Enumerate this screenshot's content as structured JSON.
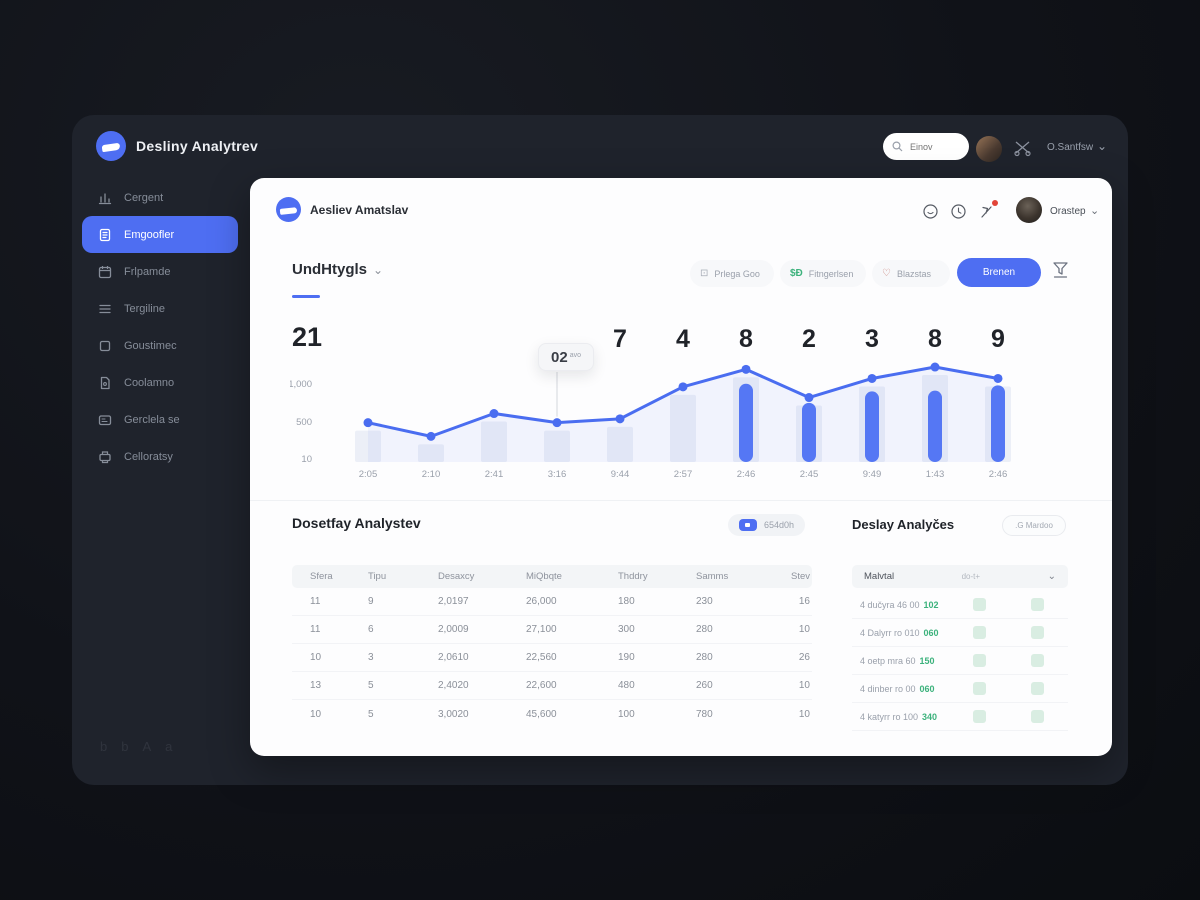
{
  "colors": {
    "accent": "#4e6ef2",
    "chart_line": "#4a6df0",
    "chart_bar": "#5577f4",
    "green": "#3cb27c",
    "frame_bg": "#1f232c",
    "card_bg": "#fdfdfe"
  },
  "topbar": {
    "brand": "Desliny Analytrev",
    "search_placeholder": "Einov",
    "user": "O.Santfsw"
  },
  "sidebar": {
    "active_index": 1,
    "items": [
      {
        "label": "Cergent",
        "icon": "chart-icon"
      },
      {
        "label": "Emgoofler",
        "icon": "docs-icon"
      },
      {
        "label": "Frlpamde",
        "icon": "calendar-icon"
      },
      {
        "label": "Tergiline",
        "icon": "rows-icon"
      },
      {
        "label": "Goustimec",
        "icon": "square-icon"
      },
      {
        "label": "Coolamno",
        "icon": "file-icon"
      },
      {
        "label": "Gerclela se",
        "icon": "card-icon"
      },
      {
        "label": "Celloratsy",
        "icon": "printer-icon"
      }
    ]
  },
  "footer_glyphs": [
    "b",
    "b",
    "A",
    "a"
  ],
  "card": {
    "header": {
      "brand": "Aesliev Amatslav",
      "user": "Orastep"
    },
    "tab_label": "UndHtygls",
    "filters": [
      {
        "label": "Prlega Goo",
        "icon": "calendar-check-icon"
      },
      {
        "label": "Fitngerlsen",
        "icon": "dollar-icon"
      },
      {
        "label": "Blazstas",
        "icon": "heart-icon"
      }
    ],
    "apply_button": "Brenen"
  },
  "chart_data": {
    "type": "line",
    "big_numbers": [
      "21",
      "7",
      "4",
      "8",
      "2",
      "3",
      "8",
      "9"
    ],
    "x": [
      "2:05",
      "2:10",
      "2:41",
      "3:16",
      "9:44",
      "2:57",
      "2:46",
      "2:45",
      "9:49",
      "1:43",
      "2:46"
    ],
    "series": [
      {
        "name": "line",
        "values": [
          490,
          310,
          610,
          490,
          540,
          960,
          1190,
          820,
          1070,
          1220,
          1070
        ]
      },
      {
        "name": "bars",
        "start_index": 6,
        "values": [
          1000,
          750,
          900,
          910,
          980
        ]
      }
    ],
    "y_ticks": [
      {
        "label": "1,000",
        "value": 1000
      },
      {
        "label": "500",
        "value": 500
      },
      {
        "label": "10",
        "value": 10
      }
    ],
    "ylim": [
      0,
      1280
    ],
    "grid": false,
    "legend": false,
    "tooltip": {
      "big": "02",
      "small": "avo",
      "point_index": 3
    }
  },
  "table": {
    "title": "Dosetfay Analystev",
    "badge": "654d0h",
    "headers": [
      "Sfera",
      "Tipu",
      "Desaxcy",
      "MiQbqte",
      "Thddry",
      "Samms",
      "Stev"
    ],
    "rows": [
      [
        "11",
        "9",
        "2,0197",
        "26,000",
        "180",
        "230",
        "16"
      ],
      [
        "11",
        "6",
        "2,0009",
        "27,100",
        "300",
        "280",
        "10"
      ],
      [
        "10",
        "3",
        "2,0610",
        "22,560",
        "190",
        "280",
        "26"
      ],
      [
        "13",
        "5",
        "2,4020",
        "22,600",
        "480",
        "260",
        "10"
      ],
      [
        "10",
        "5",
        "3,0020",
        "45,600",
        "100",
        "780",
        "10"
      ]
    ]
  },
  "right_panel": {
    "title": "Deslay Analyčes",
    "action": ".G Mardoo",
    "header": {
      "left": "Malvtal",
      "center": "do-t+"
    },
    "rows": [
      {
        "label": "4 dučyra 46 00",
        "value": "102"
      },
      {
        "label": "4 Dalyrr ro 010",
        "value": "060"
      },
      {
        "label": "4 oetp mra 60",
        "value": "150"
      },
      {
        "label": "4 dinber ro 00",
        "value": "060"
      },
      {
        "label": "4 katyrr ro 100",
        "value": "340"
      }
    ]
  }
}
